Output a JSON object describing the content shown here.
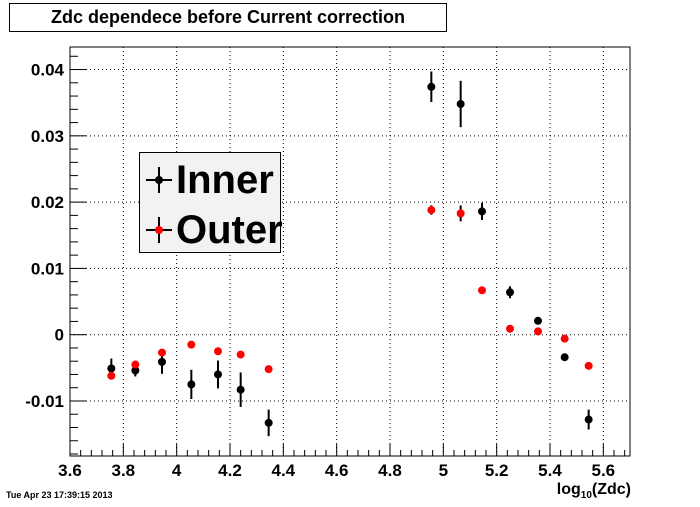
{
  "chart_data": {
    "type": "scatter",
    "title": "Zdc dependece before Current correction",
    "xlabel_main": "log",
    "xlabel_sub": "10",
    "xlabel_tail": "(Zdc)",
    "xlim": [
      3.6,
      5.7
    ],
    "ylim": [
      -0.0183,
      0.0434
    ],
    "xticks": [
      3.6,
      3.8,
      4,
      4.2,
      4.4,
      4.6,
      4.8,
      5,
      5.2,
      5.4,
      5.6
    ],
    "xtick_labels": [
      "3.6",
      "3.8",
      "4",
      "4.2",
      "4.4",
      "4.6",
      "4.8",
      "5",
      "5.2",
      "5.4",
      "5.6"
    ],
    "yticks": [
      -0.01,
      0,
      0.01,
      0.02,
      0.03,
      0.04
    ],
    "ytick_labels": [
      "-0.01",
      "0",
      "0.01",
      "0.02",
      "0.03",
      "0.04"
    ],
    "grid": true,
    "legend_position": "upper-left",
    "series": [
      {
        "name": "Inner",
        "color": "#000000",
        "points": [
          {
            "x": 3.755,
            "y": -0.0051,
            "err": 0.0015
          },
          {
            "x": 3.845,
            "y": -0.0054,
            "err": 0.0009
          },
          {
            "x": 3.945,
            "y": -0.0041,
            "err": 0.0018
          },
          {
            "x": 4.055,
            "y": -0.0075,
            "err": 0.0022
          },
          {
            "x": 4.155,
            "y": -0.006,
            "err": 0.0021
          },
          {
            "x": 4.24,
            "y": -0.0083,
            "err": 0.0026
          },
          {
            "x": 4.345,
            "y": -0.0133,
            "err": 0.002
          },
          {
            "x": 4.955,
            "y": 0.0374,
            "err": 0.0023
          },
          {
            "x": 5.065,
            "y": 0.0348,
            "err": 0.0035
          },
          {
            "x": 5.145,
            "y": 0.0186,
            "err": 0.0013
          },
          {
            "x": 5.25,
            "y": 0.0064,
            "err": 0.0009
          },
          {
            "x": 5.355,
            "y": 0.0021,
            "err": 0.0005
          },
          {
            "x": 5.455,
            "y": -0.0034,
            "err": 0.0004
          },
          {
            "x": 5.545,
            "y": -0.0128,
            "err": 0.0015
          }
        ]
      },
      {
        "name": "Outer",
        "color": "#ff0000",
        "points": [
          {
            "x": 3.755,
            "y": -0.0062,
            "err": 0.0004
          },
          {
            "x": 3.845,
            "y": -0.0045,
            "err": 0.0004
          },
          {
            "x": 3.945,
            "y": -0.0027,
            "err": 0.0004
          },
          {
            "x": 4.055,
            "y": -0.0015,
            "err": 0.0004
          },
          {
            "x": 4.155,
            "y": -0.0025,
            "err": 0.0004
          },
          {
            "x": 4.24,
            "y": -0.003,
            "err": 0.0004
          },
          {
            "x": 4.345,
            "y": -0.0052,
            "err": 0.0004
          },
          {
            "x": 4.955,
            "y": 0.0188,
            "err": 0.0007
          },
          {
            "x": 5.065,
            "y": 0.0183,
            "err": 0.0012
          },
          {
            "x": 5.145,
            "y": 0.0067,
            "err": 0.0004
          },
          {
            "x": 5.25,
            "y": 0.0009,
            "err": 0.0004
          },
          {
            "x": 5.355,
            "y": 0.0005,
            "err": 0.0004
          },
          {
            "x": 5.455,
            "y": -0.0006,
            "err": 0.0004
          },
          {
            "x": 5.545,
            "y": -0.0047,
            "err": 0.0004
          }
        ]
      }
    ]
  },
  "timestamp": "Tue Apr 23 17:39:15 2013"
}
